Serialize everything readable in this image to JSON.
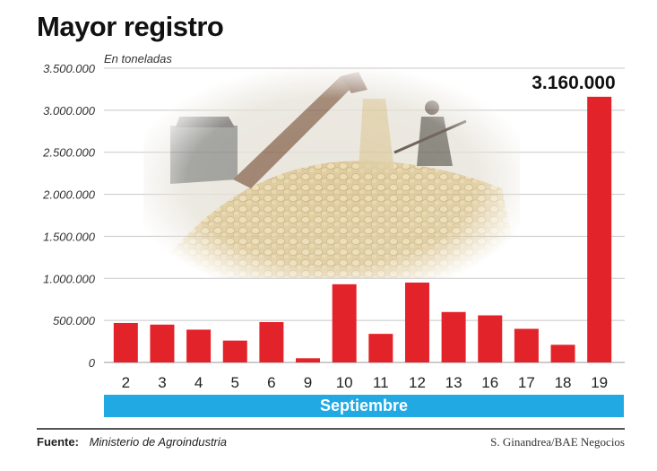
{
  "header": {
    "title": "Mayor registro",
    "subtitle": "En toneladas"
  },
  "colors": {
    "bar": "#e3232a",
    "month_band": "#20a9e3",
    "grid": "#c8c8c8"
  },
  "photo_icon": "soy-harvest-photo",
  "chart_data": {
    "type": "bar",
    "title": "Mayor registro",
    "subtitle": "En toneladas",
    "xlabel": "Septiembre",
    "ylabel": "",
    "categories": [
      "2",
      "3",
      "4",
      "5",
      "6",
      "9",
      "10",
      "11",
      "12",
      "13",
      "16",
      "17",
      "18",
      "19"
    ],
    "values": [
      470000,
      450000,
      390000,
      260000,
      480000,
      50000,
      930000,
      340000,
      950000,
      600000,
      560000,
      400000,
      210000,
      3160000
    ],
    "ylim": [
      0,
      3500000
    ],
    "yticks": [
      0,
      500000,
      1000000,
      1500000,
      2000000,
      2500000,
      3000000,
      3500000
    ],
    "ytick_labels": [
      "0",
      "500.000",
      "1.000.000",
      "1.500.000",
      "2.000.000",
      "2.500.000",
      "3.000.000",
      "3.500.000"
    ],
    "highlight_label": "3.160.000",
    "grid": true
  },
  "footer": {
    "source_label": "Fuente:",
    "source_value": "Ministerio de Agroindustria",
    "credit": "S. Ginandrea/BAE Negocios"
  }
}
